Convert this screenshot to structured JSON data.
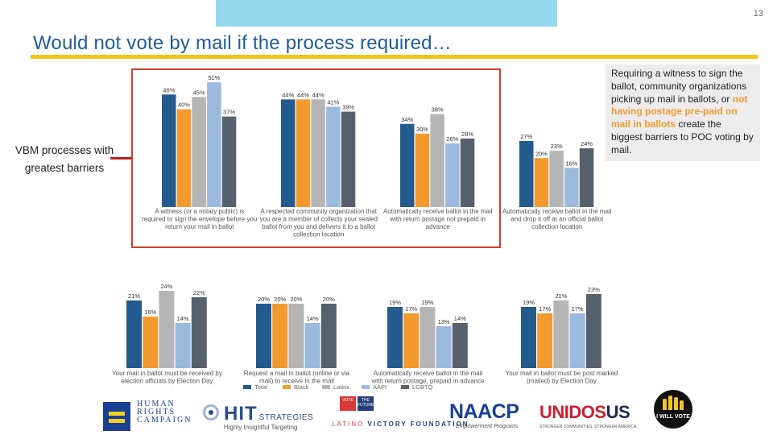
{
  "page": {
    "number": "13",
    "title": "Would not vote by mail if the process required…"
  },
  "side_label": "VBM processes with greatest barriers",
  "note": {
    "part1": "Requiring a witness to sign the ballot, community organizations picking up mail in ballots, or ",
    "highlight": "not having postage pre-paid on mail in ballots",
    "part2": " create the biggest barriers to POC voting by mail."
  },
  "colors": {
    "Total": "#245b8f",
    "Black": "#f39a2e",
    "Latinx": "#b5b5b5",
    "AAPI": "#9ab9dd",
    "LGBTQ": "#56616d",
    "frame": "#d9382e",
    "accent": "#f0c419"
  },
  "chart_data": [
    {
      "type": "bar",
      "title": "Top panel (highlighted: VBM processes with greatest barriers)",
      "categories": [
        "A witness (or a notary public) is required to sign the envelope before you return your mail in ballot",
        "A respected community organization that you are a member of collects your sealed ballot from you and delivers it to a ballot collection location",
        "Automatically receive ballot in the mail with return postage not prepaid in advance",
        "Automatically receive ballot in the mail and drop it off at an official ballot collection location"
      ],
      "category_lines": [
        [
          "A witness (or a notary public) is",
          "required to sign the envelope before you",
          "return your mail in ballot"
        ],
        [
          "A respected community organization that",
          "you are a member of collects your sealed",
          "ballot from you and delivers it to a ballot",
          "collection location"
        ],
        [
          "Automatically receive ballot in the mail",
          "with return postage not prepaid in",
          "advance"
        ],
        [
          "Automatically receive ballot in the mail",
          "and drop it off at an official ballot",
          "collection location"
        ]
      ],
      "series": [
        {
          "name": "Total",
          "values": [
            46,
            44,
            34,
            27
          ]
        },
        {
          "name": "Black",
          "values": [
            40,
            44,
            30,
            20
          ]
        },
        {
          "name": "Latinx",
          "values": [
            45,
            44,
            38,
            23
          ]
        },
        {
          "name": "AAPI",
          "values": [
            51,
            41,
            26,
            16
          ]
        },
        {
          "name": "LGBTQ",
          "values": [
            37,
            39,
            28,
            24
          ]
        }
      ],
      "ylim": [
        0,
        55
      ]
    },
    {
      "type": "bar",
      "title": "Bottom panel",
      "categories": [
        "Your mail in ballot must be received by election officials by Election Day",
        "Request a mail in ballot (online or via mail) to receive in the mail",
        "Automatically receive ballot in the mail with return postage, prepaid in advance",
        "Your mail in ballot must be post marked (mailed) by Election Day"
      ],
      "category_lines": [
        [
          "Your mail in ballot must be received by",
          "election officials by Election Day"
        ],
        [
          "Request a mail in ballot (online or via",
          "mail) to receive in the mail"
        ],
        [
          "Automatically receive ballot in the mail",
          "with return postage, prepaid in advance"
        ],
        [
          "Your mail in ballot must be post marked",
          "(mailed) by Election Day"
        ]
      ],
      "series": [
        {
          "name": "Total",
          "values": [
            21,
            20,
            19,
            19
          ]
        },
        {
          "name": "Black",
          "values": [
            16,
            20,
            17,
            17
          ]
        },
        {
          "name": "Latinx",
          "values": [
            24,
            20,
            19,
            21
          ]
        },
        {
          "name": "AAPI",
          "values": [
            14,
            14,
            13,
            17
          ]
        },
        {
          "name": "LGBTQ",
          "values": [
            22,
            20,
            14,
            23
          ]
        }
      ],
      "ylim": [
        0,
        28
      ],
      "legend": [
        "Total",
        "Black",
        "Latinx",
        "AAPI",
        "LGBTQ"
      ]
    }
  ],
  "logos": {
    "hrc": "HUMAN\nRIGHTS\nCAMPAIGN",
    "hit": {
      "name": "HIT",
      "suffix": "STRATEGIES",
      "tagline": "Highly Insightful Targeting"
    },
    "lvf": {
      "flag1": "VOTE",
      "flag2": "THE FUTURE",
      "name_a": "LATINO ",
      "name_b": "VICTORY FOUNDATION"
    },
    "naacp": {
      "name": "NAACP",
      "tagline": "Empowerment Programs"
    },
    "unidos": {
      "name_a": "UNID",
      "name_b": "OS",
      "name_c": "US",
      "tagline": "STRONGER COMMUNITIES. STRONGER AMERICA."
    },
    "iwv": "I WILL VOTE"
  }
}
